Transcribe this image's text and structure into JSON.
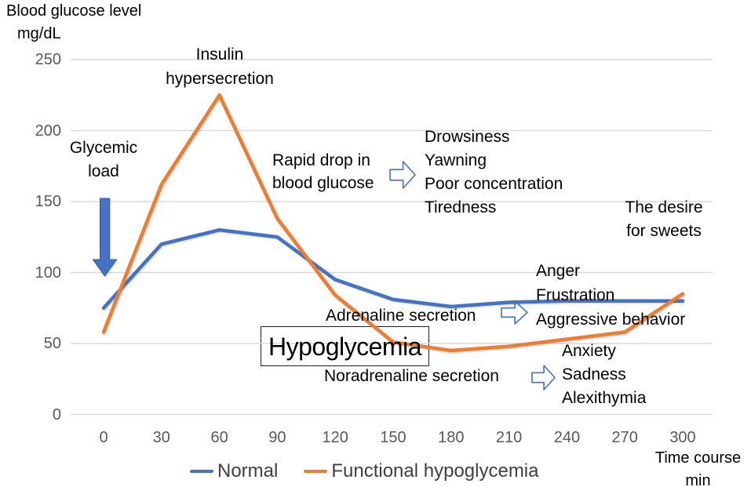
{
  "colors": {
    "normal_line": "#4472C4",
    "hypoglycemia_line": "#ED7D31",
    "gridline": "#D9D9D9",
    "tick_text": "#595959",
    "legend_text": "#3F3F3F",
    "down_arrow_fill": "#4472C4",
    "down_arrow_border": "#38569B",
    "open_arrow_stroke": "#4472C4",
    "open_arrow_fill": "#FFFFFF"
  },
  "y_axis_title": {
    "line1": "Blood glucose level",
    "line2": "mg/dL"
  },
  "x_axis_title": {
    "line1": "Time course",
    "line2": "min"
  },
  "chart_data": {
    "type": "line",
    "x": [
      0,
      30,
      60,
      90,
      120,
      150,
      180,
      210,
      240,
      270,
      300
    ],
    "series": [
      {
        "name": "Normal",
        "color": "#4472C4",
        "values": [
          75,
          120,
          130,
          125,
          95,
          81,
          76,
          79,
          80,
          80,
          80
        ]
      },
      {
        "name": "Functional hypoglycemia",
        "color": "#ED7D31",
        "values": [
          58,
          162,
          225,
          138,
          84,
          51,
          45,
          48,
          53,
          58,
          85
        ]
      }
    ],
    "title": "",
    "xlabel": "Time course min",
    "ylabel": "Blood glucose level mg/dL",
    "ylim": [
      0,
      250
    ],
    "yticks": [
      0,
      50,
      100,
      150,
      200,
      250
    ],
    "grid": true,
    "legend_position": "bottom"
  },
  "annotations": {
    "insulin": {
      "lines": [
        "Insulin",
        "hypersecretion"
      ]
    },
    "glycemic_load": {
      "lines": [
        "Glycemic",
        "load"
      ]
    },
    "rapid_drop": {
      "lines": [
        "Rapid drop in",
        "blood glucose"
      ]
    },
    "drowsiness_group": {
      "lines": [
        "Drowsiness",
        "Yawning",
        "Poor concentration",
        "Tiredness"
      ]
    },
    "desire": {
      "lines": [
        "The desire",
        "for sweets"
      ]
    },
    "anger_group": {
      "lines": [
        "Anger",
        "Frustration",
        "Aggressive behavior"
      ]
    },
    "adrenaline": {
      "text": "Adrenaline secretion"
    },
    "hypoglycemia": {
      "text": "Hypoglycemia"
    },
    "noradrenaline": {
      "text": "Noradrenaline secretion"
    },
    "anxiety_group": {
      "lines": [
        "Anxiety",
        "Sadness",
        "Alexithymia"
      ]
    }
  }
}
